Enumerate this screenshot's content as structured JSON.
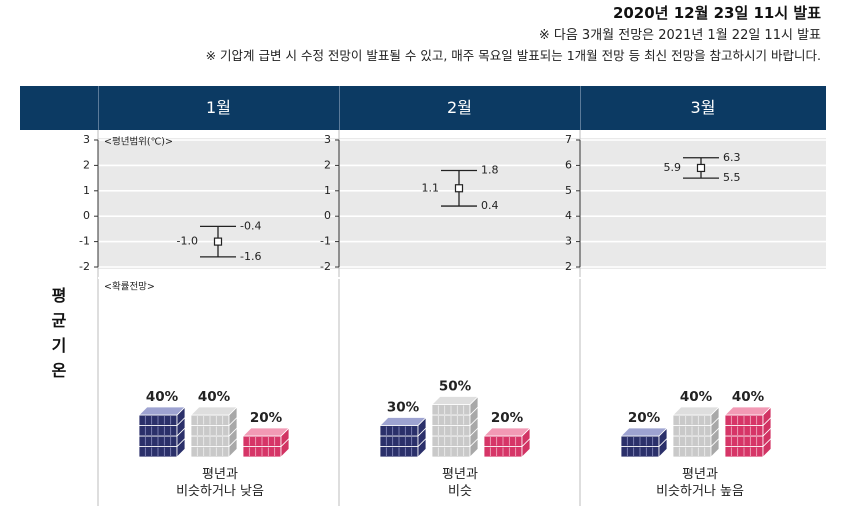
{
  "header": {
    "date": "2020년 12월 23일 11시 발표",
    "note_next": "※ 다음 3개월 전망은 2021년 1월 22일 11시 발표",
    "note_update": "※ 기압계 급변 시 수정 전망이 발표될 수 있고, 매주 목요일 발표되는 1개월 전망 등 최신 전망을 참고하시기 바랍니다."
  },
  "side_label": [
    "평",
    "균",
    "기",
    "온"
  ],
  "colors": {
    "header_band": "#0c3a63",
    "below": "#8c91c2",
    "normal": "#c8c8c8",
    "above": "#e57c9b"
  },
  "chart_data": {
    "type": "range_and_probability",
    "range_panel_label": "<평년범위(℃)>",
    "prob_panel_label": "<확률전망>",
    "months": [
      {
        "label": "1월",
        "range": {
          "center": -1.0,
          "low": -1.6,
          "high": -0.4
        },
        "range_labels": {
          "center": "-1.0",
          "low": "-1.6",
          "high": "-0.4"
        },
        "yticks": [
          "3",
          "2",
          "1",
          "0",
          "-1",
          "-2"
        ],
        "ylim": [
          -2,
          3
        ],
        "probabilities": {
          "below": 40,
          "normal": 40,
          "above": 20
        },
        "prob_labels": {
          "below": "40%",
          "normal": "40%",
          "above": "20%"
        },
        "forecast": [
          "평년과",
          "비슷하거나 낮음"
        ]
      },
      {
        "label": "2월",
        "range": {
          "center": 1.1,
          "low": 0.4,
          "high": 1.8
        },
        "range_labels": {
          "center": "1.1",
          "low": "0.4",
          "high": "1.8"
        },
        "yticks": [
          "3",
          "2",
          "1",
          "0",
          "-1",
          "-2"
        ],
        "ylim": [
          -2,
          3
        ],
        "probabilities": {
          "below": 30,
          "normal": 50,
          "above": 20
        },
        "prob_labels": {
          "below": "30%",
          "normal": "50%",
          "above": "20%"
        },
        "forecast": [
          "평년과",
          "비슷"
        ]
      },
      {
        "label": "3월",
        "range": {
          "center": 5.9,
          "low": 5.5,
          "high": 6.3
        },
        "range_labels": {
          "center": "5.9",
          "low": "5.5",
          "high": "6.3"
        },
        "yticks": [
          "7",
          "6",
          "5",
          "4",
          "3",
          "2"
        ],
        "ylim": [
          2,
          7
        ],
        "probabilities": {
          "below": 20,
          "normal": 40,
          "above": 40
        },
        "prob_labels": {
          "below": "20%",
          "normal": "40%",
          "above": "40%"
        },
        "forecast": [
          "평년과",
          "비슷하거나 높음"
        ]
      }
    ]
  }
}
